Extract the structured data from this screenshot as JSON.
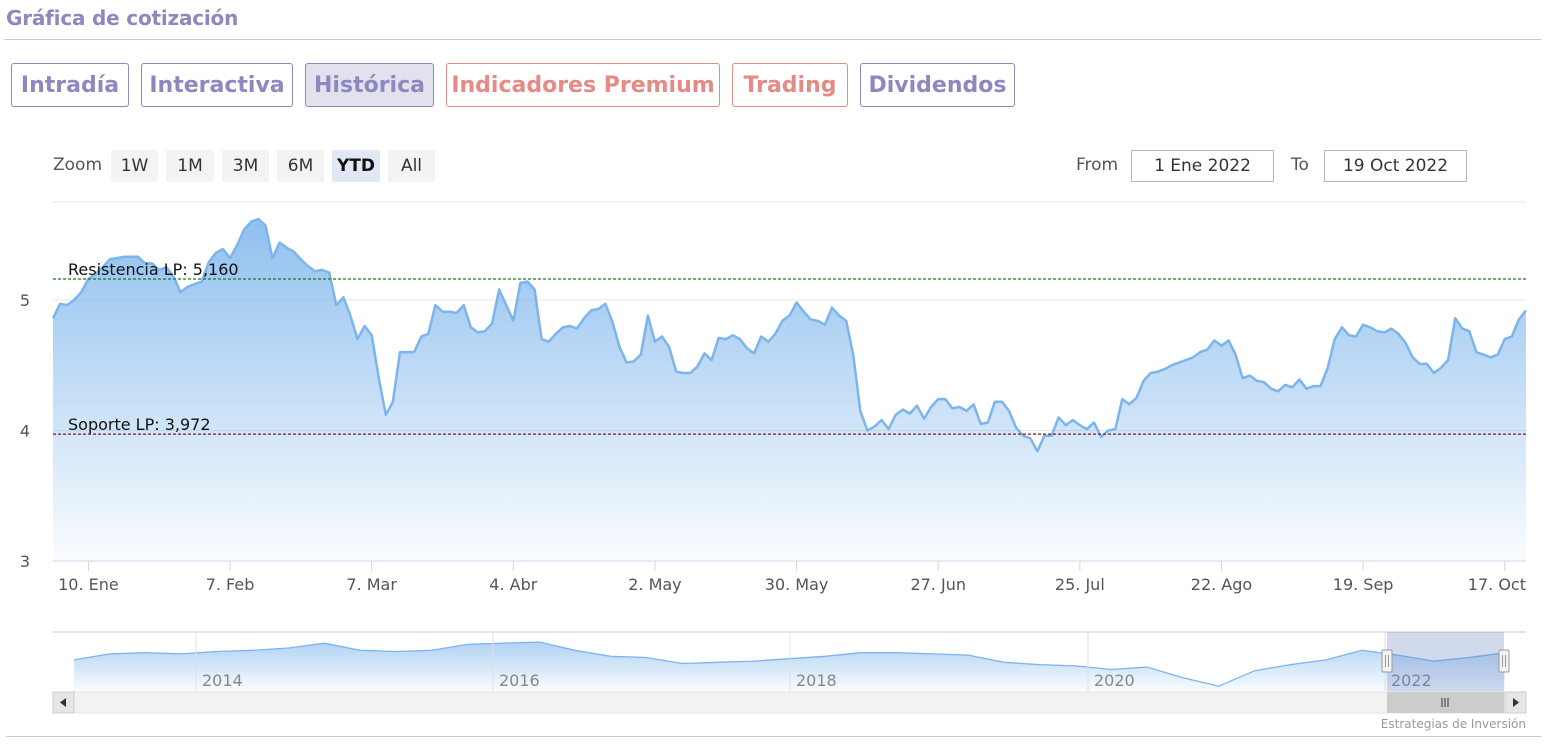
{
  "header": {
    "title": "Gráfica de cotización"
  },
  "tabs": [
    {
      "label": "Intradía",
      "active": false,
      "premium": false
    },
    {
      "label": "Interactiva",
      "active": false,
      "premium": false
    },
    {
      "label": "Histórica",
      "active": true,
      "premium": false
    },
    {
      "label": "Indicadores Premium",
      "active": false,
      "premium": true
    },
    {
      "label": "Trading",
      "active": false,
      "premium": true
    },
    {
      "label": "Dividendos",
      "active": false,
      "premium": false
    }
  ],
  "zoom": {
    "label": "Zoom",
    "buttons": [
      "1W",
      "1M",
      "3M",
      "6M",
      "YTD",
      "All"
    ],
    "selected": "YTD"
  },
  "range": {
    "from_label": "From",
    "from_value": "1 Ene 2022",
    "to_label": "To",
    "to_value": "19 Oct 2022"
  },
  "credits": "Estrategias de Inversión",
  "colors": {
    "accent": "#8d88c0",
    "premium": "#e58a84",
    "series": "#7cb5ec",
    "resistance": "#1a7a1a",
    "support": "#7a1530"
  },
  "chart_data": {
    "type": "area",
    "x_start": "2022-01-03",
    "x_ticks": [
      "10. Ene",
      "7. Feb",
      "7. Mar",
      "4. Abr",
      "2. May",
      "30. May",
      "27. Jun",
      "25. Jul",
      "22. Ago",
      "19. Sep",
      "17. Oct"
    ],
    "y_ticks": [
      "3",
      "4",
      "5"
    ],
    "ylim": [
      3,
      5.75
    ],
    "grid": true,
    "series": [
      {
        "values": [
          4.86,
          4.97,
          4.96,
          5.0,
          5.06,
          5.16,
          5.2,
          5.25,
          5.31,
          5.32,
          5.33,
          5.33,
          5.33,
          5.28,
          5.28,
          5.23,
          5.25,
          5.18,
          5.06,
          5.1,
          5.12,
          5.14,
          5.29,
          5.36,
          5.39,
          5.32,
          5.42,
          5.54,
          5.6,
          5.62,
          5.57,
          5.32,
          5.44,
          5.4,
          5.37,
          5.31,
          5.26,
          5.22,
          5.23,
          5.21,
          4.96,
          5.02,
          4.88,
          4.7,
          4.8,
          4.73,
          4.4,
          4.12,
          4.22,
          4.6,
          4.6,
          4.6,
          4.72,
          4.74,
          4.96,
          4.91,
          4.91,
          4.9,
          4.96,
          4.79,
          4.75,
          4.76,
          4.82,
          5.08,
          4.96,
          4.84,
          5.13,
          5.14,
          5.08,
          4.7,
          4.68,
          4.74,
          4.79,
          4.8,
          4.78,
          4.86,
          4.92,
          4.93,
          4.97,
          4.83,
          4.64,
          4.52,
          4.53,
          4.58,
          4.88,
          4.68,
          4.72,
          4.64,
          4.45,
          4.44,
          4.44,
          4.49,
          4.59,
          4.54,
          4.71,
          4.7,
          4.73,
          4.7,
          4.63,
          4.59,
          4.72,
          4.68,
          4.74,
          4.84,
          4.88,
          4.98,
          4.91,
          4.85,
          4.84,
          4.81,
          4.94,
          4.88,
          4.84,
          4.58,
          4.15,
          4.0,
          4.03,
          4.08,
          4.01,
          4.12,
          4.16,
          4.13,
          4.19,
          4.09,
          4.18,
          4.24,
          4.24,
          4.17,
          4.18,
          4.15,
          4.2,
          4.05,
          4.06,
          4.22,
          4.22,
          4.15,
          4.02,
          3.96,
          3.94,
          3.84,
          3.96,
          3.96,
          4.1,
          4.04,
          4.08,
          4.04,
          4.01,
          4.06,
          3.95,
          4.0,
          4.01,
          4.24,
          4.2,
          4.25,
          4.38,
          4.44,
          4.45,
          4.47,
          4.5,
          4.52,
          4.54,
          4.56,
          4.6,
          4.62,
          4.69,
          4.65,
          4.69,
          4.58,
          4.4,
          4.42,
          4.38,
          4.37,
          4.32,
          4.3,
          4.35,
          4.33,
          4.39,
          4.32,
          4.34,
          4.34,
          4.48,
          4.7,
          4.79,
          4.73,
          4.72,
          4.81,
          4.79,
          4.76,
          4.75,
          4.78,
          4.74,
          4.67,
          4.56,
          4.51,
          4.51,
          4.44,
          4.48,
          4.54,
          4.86,
          4.78,
          4.76,
          4.6,
          4.58,
          4.56,
          4.58,
          4.7,
          4.72,
          4.85,
          4.92
        ]
      }
    ],
    "reference_lines": [
      {
        "label": "Resistencia LP: 5,160",
        "value": 5.16
      },
      {
        "label": "Soporte LP: 3,972",
        "value": 3.972
      }
    ],
    "navigator": {
      "x_ticks": [
        "2014",
        "2016",
        "2018",
        "2020",
        "2022"
      ],
      "values": [
        4.2,
        4.45,
        4.5,
        4.45,
        4.55,
        4.6,
        4.7,
        4.9,
        4.6,
        4.55,
        4.6,
        4.85,
        4.9,
        4.95,
        4.6,
        4.35,
        4.3,
        4.05,
        4.1,
        4.15,
        4.25,
        4.35,
        4.5,
        4.5,
        4.45,
        4.4,
        4.1,
        4.0,
        3.95,
        3.8,
        3.9,
        3.45,
        3.1,
        3.75,
        4.0,
        4.2,
        4.6,
        4.4,
        4.15,
        4.3,
        4.5
      ],
      "selected_range_label": "YTD"
    }
  }
}
